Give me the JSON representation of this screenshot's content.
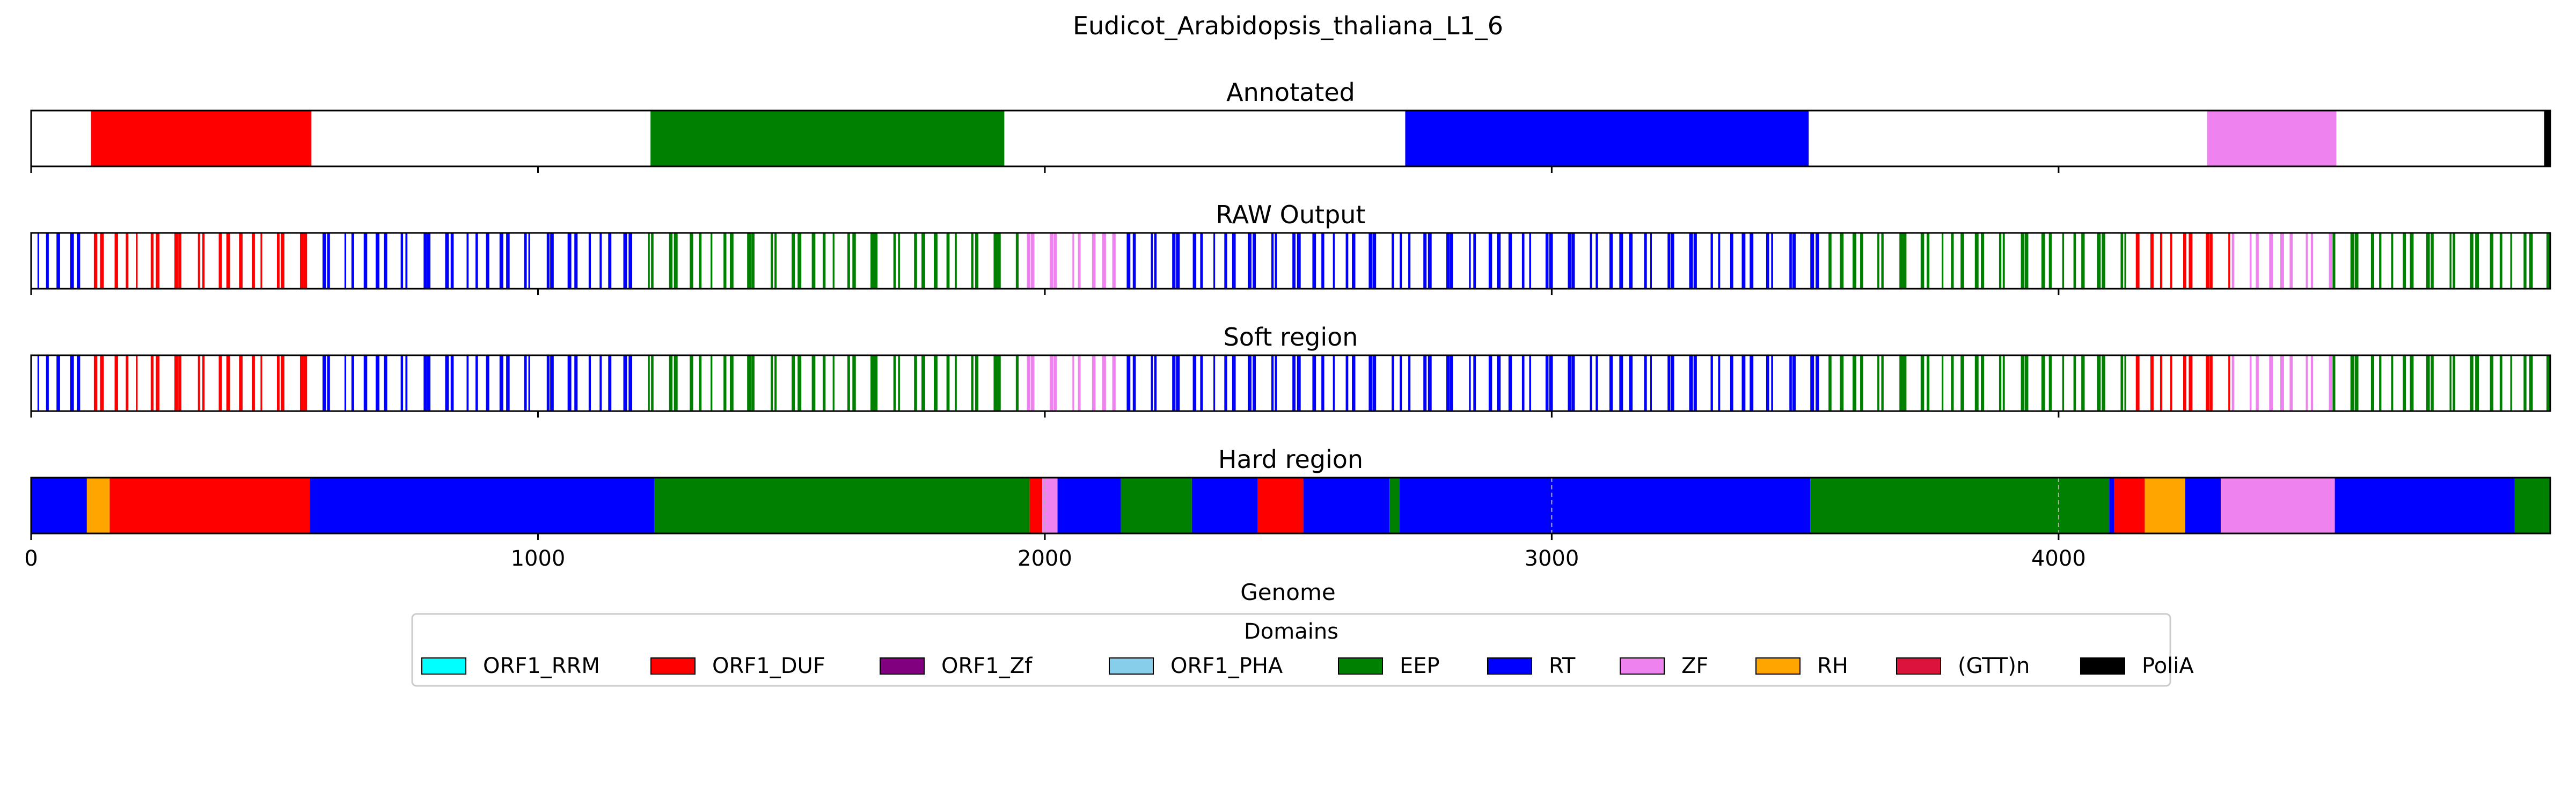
{
  "chart_data": {
    "type": "track",
    "title": "Eudicot_Arabidopsis_thaliana_L1_6",
    "xlabel": "Genome",
    "xlim": [
      0,
      4970
    ],
    "xticks": [
      0,
      1000,
      2000,
      3000,
      4000
    ],
    "xtick_labels": [
      "0",
      "1000",
      "2000",
      "3000",
      "4000"
    ],
    "legend": {
      "title": "Domains",
      "position": "bottom-center",
      "items": [
        {
          "label": "ORF1_RRM",
          "color": "#00ffff"
        },
        {
          "label": "ORF1_DUF",
          "color": "#ff0000"
        },
        {
          "label": "ORF1_Zf",
          "color": "#800080"
        },
        {
          "label": "ORF1_PHA",
          "color": "#87ceeb"
        },
        {
          "label": "EEP",
          "color": "#008000"
        },
        {
          "label": "RT",
          "color": "#0000ff"
        },
        {
          "label": "ZF",
          "color": "#ee82ee"
        },
        {
          "label": "RH",
          "color": "#ffa500"
        },
        {
          "label": "(GTT)n",
          "color": "#dc143c"
        },
        {
          "label": "PoliA",
          "color": "#000000"
        }
      ]
    },
    "panels": [
      {
        "title": "Annotated",
        "kind": "segments",
        "segments": [
          {
            "domain": "ORF1_DUF",
            "start": 118,
            "end": 553
          },
          {
            "domain": "EEP",
            "start": 1222,
            "end": 1920
          },
          {
            "domain": "RT",
            "start": 2711,
            "end": 3507
          },
          {
            "domain": "ZF",
            "start": 4293,
            "end": 4548
          },
          {
            "domain": "PoliA",
            "start": 4958,
            "end": 4970
          }
        ]
      },
      {
        "title": "RAW Output",
        "kind": "stripes",
        "segments": [
          {
            "domain": "RT",
            "start": 0,
            "end": 110
          },
          {
            "domain": "ORF1_DUF",
            "start": 110,
            "end": 560
          },
          {
            "domain": "RT",
            "start": 560,
            "end": 1200
          },
          {
            "domain": "EEP",
            "start": 1200,
            "end": 1950
          },
          {
            "domain": "ZF",
            "start": 1950,
            "end": 2150
          },
          {
            "domain": "RT",
            "start": 2150,
            "end": 2690
          },
          {
            "domain": "RT",
            "start": 2690,
            "end": 3540
          },
          {
            "domain": "EEP",
            "start": 3540,
            "end": 4150
          },
          {
            "domain": "ORF1_DUF",
            "start": 4150,
            "end": 4340
          },
          {
            "domain": "ZF",
            "start": 4340,
            "end": 4540
          },
          {
            "domain": "EEP",
            "start": 4540,
            "end": 4970
          }
        ]
      },
      {
        "title": "Soft region",
        "kind": "stripes",
        "segments": [
          {
            "domain": "RT",
            "start": 0,
            "end": 110
          },
          {
            "domain": "ORF1_DUF",
            "start": 110,
            "end": 560
          },
          {
            "domain": "RT",
            "start": 560,
            "end": 1200
          },
          {
            "domain": "EEP",
            "start": 1200,
            "end": 1950
          },
          {
            "domain": "ZF",
            "start": 1950,
            "end": 2150
          },
          {
            "domain": "RT",
            "start": 2150,
            "end": 2690
          },
          {
            "domain": "RT",
            "start": 2690,
            "end": 3540
          },
          {
            "domain": "EEP",
            "start": 3540,
            "end": 4150
          },
          {
            "domain": "ORF1_DUF",
            "start": 4150,
            "end": 4340
          },
          {
            "domain": "ZF",
            "start": 4340,
            "end": 4540
          },
          {
            "domain": "EEP",
            "start": 4540,
            "end": 4970
          }
        ]
      },
      {
        "title": "Hard region",
        "kind": "filled",
        "segments": [
          {
            "domain": "RT",
            "start": 0,
            "end": 110
          },
          {
            "domain": "RH",
            "start": 110,
            "end": 155
          },
          {
            "domain": "ORF1_DUF",
            "start": 155,
            "end": 550
          },
          {
            "domain": "RT",
            "start": 550,
            "end": 1230
          },
          {
            "domain": "EEP",
            "start": 1230,
            "end": 1970
          },
          {
            "domain": "ORF1_DUF",
            "start": 1970,
            "end": 1995
          },
          {
            "domain": "ZF",
            "start": 1995,
            "end": 2025
          },
          {
            "domain": "RT",
            "start": 2025,
            "end": 2150
          },
          {
            "domain": "EEP",
            "start": 2150,
            "end": 2290
          },
          {
            "domain": "RT",
            "start": 2290,
            "end": 2420
          },
          {
            "domain": "ORF1_DUF",
            "start": 2420,
            "end": 2510
          },
          {
            "domain": "RT",
            "start": 2510,
            "end": 2680
          },
          {
            "domain": "EEP",
            "start": 2680,
            "end": 2700
          },
          {
            "domain": "RT",
            "start": 2700,
            "end": 3510
          },
          {
            "domain": "EEP",
            "start": 3510,
            "end": 4100
          },
          {
            "domain": "RT",
            "start": 4100,
            "end": 4110
          },
          {
            "domain": "ORF1_DUF",
            "start": 4110,
            "end": 4170
          },
          {
            "domain": "RH",
            "start": 4170,
            "end": 4250
          },
          {
            "domain": "RT",
            "start": 4250,
            "end": 4320
          },
          {
            "domain": "ZF",
            "start": 4320,
            "end": 4545
          },
          {
            "domain": "RT",
            "start": 4545,
            "end": 4900
          },
          {
            "domain": "EEP",
            "start": 4900,
            "end": 4970
          }
        ]
      }
    ]
  }
}
